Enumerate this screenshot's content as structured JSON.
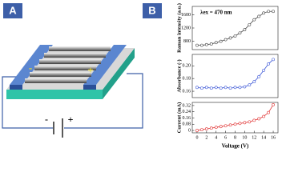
{
  "panels": {
    "a": "A",
    "b": "B"
  },
  "schematic": {
    "electrode_minus": "-",
    "electrode_plus": "+",
    "battery_minus": "-",
    "battery_plus": "+"
  },
  "chart_data": [
    {
      "type": "line",
      "ylabel": "Raman intensity (a.u.)",
      "annotation": "λex = 470 nm",
      "color": "#444444",
      "x": [
        0,
        1,
        2,
        3,
        4,
        5,
        6,
        7,
        8,
        9,
        10,
        11,
        12,
        13,
        14,
        15,
        16
      ],
      "values": [
        680,
        680,
        700,
        720,
        760,
        800,
        850,
        900,
        960,
        1050,
        1150,
        1300,
        1450,
        1550,
        1650,
        1700,
        1700
      ],
      "xlim": [
        -1,
        17
      ],
      "ylim": [
        550,
        1850
      ],
      "yticks": [
        800,
        1200,
        1600
      ]
    },
    {
      "type": "line",
      "ylabel": "Absorbance (-)",
      "color": "#3a55d6",
      "x": [
        0,
        1,
        2,
        3,
        4,
        5,
        6,
        7,
        8,
        9,
        10,
        11,
        12,
        13,
        14,
        15,
        16
      ],
      "values": [
        0.166,
        0.165,
        0.166,
        0.165,
        0.166,
        0.165,
        0.166,
        0.165,
        0.166,
        0.166,
        0.167,
        0.17,
        0.175,
        0.183,
        0.193,
        0.203,
        0.21
      ],
      "xlim": [
        -1,
        17
      ],
      "ylim": [
        0.15,
        0.218
      ],
      "yticks": [
        0.16,
        0.18,
        {
          "value": 0.2,
          "label": "0.20"
        }
      ]
    },
    {
      "type": "line",
      "ylabel": "Current (mA)",
      "xlabel": "Voltage (V)",
      "color": "#e03030",
      "x": [
        0,
        1,
        2,
        3,
        4,
        5,
        6,
        7,
        8,
        9,
        10,
        11,
        12,
        13,
        14,
        15,
        16
      ],
      "values": [
        0,
        0.01,
        0.02,
        0.03,
        0.04,
        0.05,
        0.06,
        0.07,
        0.08,
        0.09,
        0.1,
        0.11,
        0.13,
        0.15,
        0.18,
        0.23,
        0.33
      ],
      "xlim": [
        -1,
        17
      ],
      "ylim": [
        -0.03,
        0.36
      ],
      "xticks": [
        0,
        2,
        4,
        6,
        8,
        10,
        12,
        14,
        16
      ],
      "yticks": [
        0,
        0.08,
        0.16,
        0.24,
        0.32
      ]
    }
  ]
}
